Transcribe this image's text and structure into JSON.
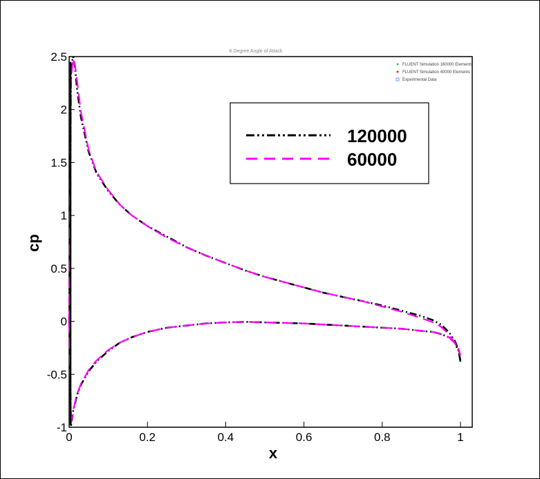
{
  "chart_data": {
    "type": "line",
    "title": "6 Degree Angle of Attack",
    "xlabel": "x",
    "ylabel": "cp",
    "xlim": [
      0,
      1.03
    ],
    "ylim": [
      -1,
      2.5
    ],
    "x_ticks": [
      "0",
      "0.2",
      "0.4",
      "0.6",
      "0.8",
      "1"
    ],
    "y_ticks": [
      "2.5",
      "2",
      "1.5",
      "1",
      "0.5",
      "0",
      "-0.5",
      "-1"
    ],
    "small_legend": [
      "FLUENT Simulation 160000 Elements",
      "FLUENT Simulation 40000 Elements",
      "Experimental Data"
    ],
    "series": [
      {
        "name": "120000",
        "color": "#000000",
        "style": "dash-dot-dot",
        "upper": {
          "x": [
            0.0,
            0.005,
            0.01,
            0.015,
            0.02,
            0.03,
            0.05,
            0.07,
            0.1,
            0.13,
            0.16,
            0.2,
            0.25,
            0.3,
            0.35,
            0.4,
            0.45,
            0.5,
            0.55,
            0.6,
            0.65,
            0.7,
            0.75,
            0.8,
            0.85,
            0.9,
            0.93,
            0.95,
            0.97,
            0.985,
            0.995,
            1.0
          ],
          "y": [
            0.0,
            2.4,
            2.5,
            2.4,
            2.2,
            1.93,
            1.6,
            1.4,
            1.23,
            1.1,
            1.0,
            0.9,
            0.8,
            0.7,
            0.62,
            0.55,
            0.48,
            0.42,
            0.37,
            0.32,
            0.27,
            0.23,
            0.19,
            0.15,
            0.1,
            0.05,
            0.01,
            -0.03,
            -0.1,
            -0.18,
            -0.27,
            -0.38
          ]
        },
        "lower": {
          "x": [
            0.0,
            0.005,
            0.01,
            0.02,
            0.03,
            0.05,
            0.07,
            0.1,
            0.13,
            0.16,
            0.2,
            0.25,
            0.3,
            0.35,
            0.4,
            0.45,
            0.5,
            0.55,
            0.6,
            0.65,
            0.7,
            0.75,
            0.8,
            0.85,
            0.9,
            0.93,
            0.95,
            0.97,
            0.985,
            0.995,
            1.0
          ],
          "y": [
            0.0,
            -0.98,
            -0.85,
            -0.7,
            -0.6,
            -0.47,
            -0.38,
            -0.28,
            -0.2,
            -0.15,
            -0.1,
            -0.06,
            -0.04,
            -0.02,
            -0.01,
            -0.005,
            -0.01,
            -0.015,
            -0.02,
            -0.03,
            -0.04,
            -0.05,
            -0.06,
            -0.07,
            -0.09,
            -0.1,
            -0.12,
            -0.15,
            -0.2,
            -0.28,
            -0.38
          ]
        }
      },
      {
        "name": "60000",
        "color": "#ff00ff",
        "style": "dashed",
        "upper": {
          "x": [
            0.0,
            0.005,
            0.01,
            0.015,
            0.02,
            0.03,
            0.05,
            0.07,
            0.1,
            0.13,
            0.16,
            0.2,
            0.25,
            0.3,
            0.35,
            0.4,
            0.45,
            0.5,
            0.55,
            0.6,
            0.65,
            0.7,
            0.75,
            0.8,
            0.85,
            0.9,
            0.93,
            0.95,
            0.97,
            0.985,
            0.995,
            1.0
          ],
          "y": [
            0.0,
            2.3,
            2.48,
            2.42,
            2.28,
            1.98,
            1.62,
            1.41,
            1.24,
            1.1,
            1.0,
            0.9,
            0.79,
            0.7,
            0.62,
            0.55,
            0.48,
            0.42,
            0.37,
            0.32,
            0.27,
            0.23,
            0.19,
            0.14,
            0.09,
            0.03,
            -0.01,
            -0.05,
            -0.12,
            -0.2,
            -0.27,
            -0.32
          ]
        },
        "lower": {
          "x": [
            0.0,
            0.005,
            0.01,
            0.02,
            0.03,
            0.05,
            0.07,
            0.1,
            0.13,
            0.16,
            0.2,
            0.25,
            0.3,
            0.35,
            0.4,
            0.45,
            0.5,
            0.55,
            0.6,
            0.65,
            0.7,
            0.75,
            0.8,
            0.85,
            0.9,
            0.93,
            0.95,
            0.97,
            0.985,
            0.995,
            1.0
          ],
          "y": [
            0.0,
            -0.96,
            -0.84,
            -0.69,
            -0.59,
            -0.46,
            -0.37,
            -0.27,
            -0.2,
            -0.15,
            -0.1,
            -0.06,
            -0.04,
            -0.02,
            -0.01,
            -0.005,
            -0.01,
            -0.015,
            -0.02,
            -0.03,
            -0.04,
            -0.05,
            -0.06,
            -0.07,
            -0.09,
            -0.1,
            -0.12,
            -0.15,
            -0.2,
            -0.26,
            -0.32
          ]
        }
      }
    ],
    "grid": false,
    "legend_position": "top-right"
  }
}
